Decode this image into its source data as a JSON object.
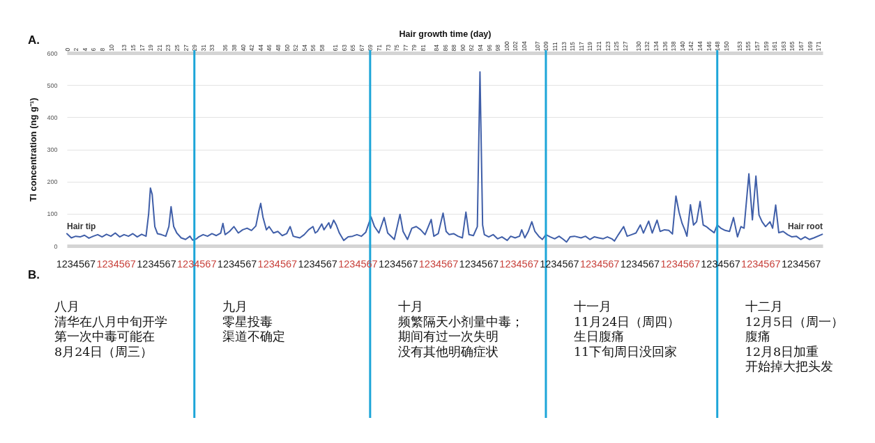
{
  "chart_data": {
    "type": "line",
    "xlabel": "Hair growth time (day)",
    "ylabel": "Tl concentration (ng g⁻¹)",
    "x": [
      0,
      1,
      2,
      3,
      4,
      5,
      6,
      7,
      8,
      9,
      10,
      11,
      12,
      13,
      14,
      15,
      16,
      17,
      18,
      18.6,
      19,
      19.4,
      20,
      20.6,
      21.5,
      22.5,
      23.2,
      23.7,
      24.3,
      25,
      26,
      27,
      28,
      28.6,
      29.5,
      30,
      31,
      32,
      33,
      34,
      35,
      35.5,
      36,
      37,
      38,
      39,
      40,
      41,
      42,
      43,
      43.7,
      44.1,
      44.6,
      45.4,
      46,
      47,
      48,
      49,
      50,
      50.8,
      51.5,
      52,
      53,
      54,
      55,
      56,
      56.5,
      57,
      58,
      58.5,
      59.6,
      60,
      60.7,
      61.3,
      62,
      63,
      64,
      65,
      66,
      67,
      68,
      69.2,
      70,
      71,
      72.2,
      73,
      74.5,
      75.8,
      76.5,
      77.5,
      78.5,
      79.5,
      80.5,
      81.5,
      82.9,
      83.5,
      84.5,
      85.6,
      86.3,
      87,
      88,
      89,
      90,
      90.8,
      91.5,
      92.5,
      93.4,
      94,
      94.6,
      95,
      96,
      97,
      98,
      99,
      100.2,
      101,
      102,
      103,
      103.5,
      104.2,
      105,
      105.8,
      106.5,
      107.5,
      108.2,
      109,
      110,
      111,
      112,
      113,
      113.7,
      114.5,
      115.5,
      117,
      118,
      119,
      120,
      121,
      122,
      123,
      124,
      124.6,
      125.5,
      126.7,
      127.5,
      128.5,
      129.5,
      130.5,
      131.2,
      132.4,
      133.2,
      134.3,
      135,
      136,
      137,
      137.8,
      138.6,
      139.3,
      140,
      140.6,
      141.1,
      141.9,
      142.6,
      143.3,
      144.1,
      144.8,
      145.5,
      146.4,
      147.3,
      148,
      148.8,
      149.8,
      150.8,
      151.7,
      152.6,
      153.4,
      154.1,
      155.2,
      156,
      156.8,
      157.5,
      158.2,
      159,
      160,
      160.6,
      161.3,
      162,
      163,
      164,
      165,
      166,
      167,
      168,
      169,
      170,
      171.9
    ],
    "series": [
      {
        "color": "#3f5ea8",
        "values": [
          38,
          25,
          30,
          28,
          33,
          24,
          30,
          35,
          28,
          36,
          30,
          40,
          28,
          35,
          30,
          38,
          28,
          36,
          30,
          100,
          180,
          160,
          60,
          38,
          35,
          30,
          60,
          122,
          60,
          40,
          25,
          20,
          30,
          18,
          22,
          28,
          35,
          30,
          38,
          32,
          40,
          70,
          35,
          45,
          60,
          40,
          50,
          55,
          48,
          62,
          110,
          132,
          90,
          50,
          60,
          40,
          45,
          32,
          38,
          60,
          30,
          28,
          25,
          35,
          50,
          60,
          40,
          45,
          68,
          50,
          72,
          55,
          80,
          65,
          40,
          17,
          28,
          30,
          35,
          30,
          42,
          90,
          60,
          40,
          88,
          40,
          20,
          98,
          45,
          20,
          55,
          60,
          50,
          35,
          82,
          30,
          38,
          102,
          45,
          35,
          38,
          30,
          25,
          105,
          35,
          32,
          60,
          541,
          65,
          35,
          28,
          35,
          22,
          28,
          17,
          30,
          25,
          30,
          50,
          25,
          45,
          75,
          45,
          28,
          20,
          35,
          28,
          22,
          30,
          20,
          12,
          28,
          30,
          25,
          30,
          20,
          28,
          25,
          22,
          28,
          22,
          15,
          35,
          60,
          30,
          35,
          40,
          65,
          40,
          77,
          40,
          80,
          45,
          50,
          48,
          37,
          155,
          105,
          70,
          50,
          30,
          128,
          65,
          75,
          138,
          65,
          60,
          50,
          41,
          65,
          55,
          48,
          45,
          88,
          28,
          60,
          55,
          224,
          81,
          217,
          96,
          75,
          60,
          75,
          55,
          127,
          41,
          45,
          35,
          28,
          30,
          20,
          28,
          20,
          25,
          36
        ]
      }
    ],
    "xlim": [
      0,
      172
    ],
    "ylim": [
      0,
      600
    ],
    "xticks": [
      0,
      2,
      4,
      6,
      8,
      10,
      13,
      15,
      17,
      19,
      21,
      23,
      25,
      27,
      29,
      31,
      33,
      36,
      38,
      40,
      42,
      44,
      46,
      48,
      50,
      52,
      54,
      56,
      58,
      61,
      63,
      65,
      67,
      69,
      71,
      73,
      75,
      77,
      79,
      81,
      84,
      86,
      88,
      90,
      92,
      94,
      96,
      98,
      100,
      102,
      104,
      107,
      109,
      111,
      113,
      115,
      117,
      119,
      121,
      123,
      125,
      127,
      130,
      132,
      134,
      136,
      138,
      140,
      142,
      144,
      146,
      148,
      150,
      153,
      155,
      157,
      159,
      161,
      163,
      165,
      167,
      169,
      171
    ],
    "yticks": [
      0,
      100,
      200,
      300,
      400,
      500,
      600
    ],
    "grid": "y",
    "ref_lines": [
      {
        "axis": "x",
        "value": 29,
        "color": "#1ca5d8"
      },
      {
        "axis": "x",
        "value": 69,
        "color": "#1ca5d8"
      },
      {
        "axis": "x",
        "value": 109,
        "color": "#1ca5d8"
      },
      {
        "axis": "x",
        "value": 148,
        "color": "#1ca5d8"
      }
    ],
    "annotations": [
      "A.",
      "Hair tip",
      "Hair root",
      "B.",
      "1234567",
      "1234567",
      "1234567",
      "1234567",
      "1234567",
      "1234567",
      "1234567",
      "1234567",
      "1234567",
      "1234567",
      "1234567",
      "1234567",
      "1234567",
      "1234567",
      "1234567",
      "1234567",
      "1234567",
      "1234567",
      "1234567",
      "八月",
      "清华在八月中旬开学",
      "第一次中毒可能在",
      "8月24日（周三）",
      "九月",
      "零星投毒",
      "渠道不确定",
      "十月",
      "频繁隔天小剂量中毒；",
      "期间有过一次失明",
      "没有其他明确症状",
      "十一月",
      "11月24日（周四）",
      "生日腹痛",
      "11下旬周日没回家",
      "十二月",
      "12月5日（周一）",
      "腹痛",
      "12月8日加重",
      "开始掉大把头发"
    ]
  }
}
